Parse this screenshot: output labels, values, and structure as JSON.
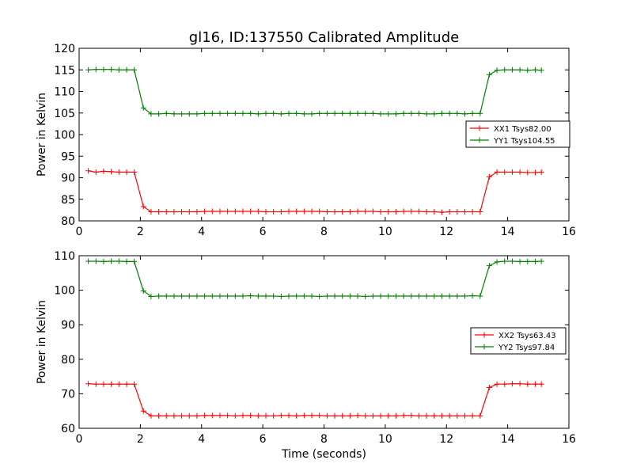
{
  "chart_data": [
    {
      "type": "line",
      "title": "gl16, ID:137550 Calibrated Amplitude",
      "xlabel": "",
      "ylabel": "Power in Kelvin",
      "xlim": [
        0,
        16
      ],
      "ylim": [
        80,
        120
      ],
      "xticks": [
        "0",
        "2",
        "4",
        "6",
        "8",
        "10",
        "12",
        "14",
        "16"
      ],
      "yticks": [
        "80",
        "85",
        "90",
        "95",
        "100",
        "105",
        "110",
        "115",
        "120"
      ],
      "grid": false,
      "legend_position": "center-right",
      "x": [
        0.3,
        0.55,
        0.8,
        1.05,
        1.3,
        1.55,
        1.8,
        2.1,
        2.35,
        2.6,
        2.85,
        3.1,
        3.35,
        3.6,
        3.85,
        4.1,
        4.35,
        4.6,
        4.85,
        5.1,
        5.35,
        5.6,
        5.85,
        6.1,
        6.35,
        6.6,
        6.85,
        7.1,
        7.35,
        7.6,
        7.85,
        8.1,
        8.35,
        8.6,
        8.85,
        9.1,
        9.35,
        9.6,
        9.85,
        10.1,
        10.35,
        10.6,
        10.85,
        11.1,
        11.35,
        11.6,
        11.85,
        12.1,
        12.35,
        12.6,
        12.85,
        13.1,
        13.4,
        13.65,
        13.9,
        14.15,
        14.4,
        14.65,
        14.9,
        15.1
      ],
      "series": [
        {
          "name": "XX1 Tsys82.00",
          "color": "#ff0000",
          "values": [
            91.6,
            91.3,
            91.5,
            91.4,
            91.3,
            91.3,
            91.3,
            83.3,
            82.1,
            82.1,
            82.1,
            82.1,
            82.1,
            82.1,
            82.1,
            82.2,
            82.2,
            82.2,
            82.2,
            82.2,
            82.2,
            82.2,
            82.2,
            82.1,
            82.1,
            82.1,
            82.2,
            82.2,
            82.2,
            82.2,
            82.2,
            82.1,
            82.1,
            82.1,
            82.1,
            82.2,
            82.2,
            82.2,
            82.1,
            82.1,
            82.1,
            82.2,
            82.2,
            82.2,
            82.1,
            82.1,
            82.0,
            82.1,
            82.1,
            82.1,
            82.1,
            82.1,
            90.2,
            91.3,
            91.3,
            91.3,
            91.3,
            91.2,
            91.2,
            91.3
          ]
        },
        {
          "name": "YY1 Tsys104.55",
          "color": "#008000",
          "values": [
            115.0,
            115.1,
            115.1,
            115.1,
            115.0,
            115.0,
            115.0,
            106.2,
            104.8,
            104.8,
            104.9,
            104.8,
            104.8,
            104.8,
            104.8,
            104.9,
            104.9,
            104.9,
            104.9,
            104.9,
            104.9,
            104.9,
            104.8,
            104.9,
            104.9,
            104.8,
            104.9,
            104.9,
            104.8,
            104.8,
            104.9,
            104.9,
            104.9,
            104.9,
            104.9,
            104.9,
            104.9,
            104.9,
            104.8,
            104.8,
            104.8,
            104.9,
            104.9,
            104.9,
            104.8,
            104.8,
            104.9,
            104.9,
            104.9,
            104.8,
            104.9,
            104.9,
            113.9,
            114.9,
            115.0,
            115.0,
            115.0,
            114.9,
            115.0,
            114.9
          ]
        }
      ]
    },
    {
      "type": "line",
      "title": "",
      "xlabel": "Time (seconds)",
      "ylabel": "Power in Kelvin",
      "xlim": [
        0,
        16
      ],
      "ylim": [
        60,
        110
      ],
      "xticks": [
        "0",
        "2",
        "4",
        "6",
        "8",
        "10",
        "12",
        "14",
        "16"
      ],
      "yticks": [
        "60",
        "70",
        "80",
        "90",
        "100",
        "110"
      ],
      "grid": false,
      "legend_position": "center-right",
      "x": [
        0.3,
        0.55,
        0.8,
        1.05,
        1.3,
        1.55,
        1.8,
        2.1,
        2.35,
        2.6,
        2.85,
        3.1,
        3.35,
        3.6,
        3.85,
        4.1,
        4.35,
        4.6,
        4.85,
        5.1,
        5.35,
        5.6,
        5.85,
        6.1,
        6.35,
        6.6,
        6.85,
        7.1,
        7.35,
        7.6,
        7.85,
        8.1,
        8.35,
        8.6,
        8.85,
        9.1,
        9.35,
        9.6,
        9.85,
        10.1,
        10.35,
        10.6,
        10.85,
        11.1,
        11.35,
        11.6,
        11.85,
        12.1,
        12.35,
        12.6,
        12.85,
        13.1,
        13.4,
        13.65,
        13.9,
        14.15,
        14.4,
        14.65,
        14.9,
        15.1
      ],
      "series": [
        {
          "name": "XX2 Tsys63.43",
          "color": "#ff0000",
          "values": [
            72.9,
            72.8,
            72.8,
            72.8,
            72.8,
            72.8,
            72.8,
            65.0,
            63.6,
            63.6,
            63.6,
            63.6,
            63.6,
            63.6,
            63.6,
            63.7,
            63.7,
            63.7,
            63.7,
            63.6,
            63.7,
            63.7,
            63.6,
            63.6,
            63.6,
            63.7,
            63.7,
            63.6,
            63.7,
            63.7,
            63.7,
            63.6,
            63.6,
            63.6,
            63.6,
            63.7,
            63.6,
            63.6,
            63.6,
            63.6,
            63.6,
            63.7,
            63.7,
            63.6,
            63.6,
            63.6,
            63.6,
            63.6,
            63.6,
            63.6,
            63.6,
            63.6,
            71.8,
            72.8,
            72.8,
            72.9,
            72.9,
            72.8,
            72.8,
            72.8
          ]
        },
        {
          "name": "YY2 Tsys97.84",
          "color": "#008000",
          "values": [
            108.4,
            108.4,
            108.3,
            108.4,
            108.4,
            108.3,
            108.3,
            99.8,
            98.2,
            98.3,
            98.3,
            98.3,
            98.3,
            98.3,
            98.3,
            98.3,
            98.3,
            98.3,
            98.3,
            98.3,
            98.3,
            98.4,
            98.3,
            98.3,
            98.3,
            98.2,
            98.3,
            98.3,
            98.3,
            98.3,
            98.2,
            98.3,
            98.3,
            98.3,
            98.3,
            98.3,
            98.2,
            98.3,
            98.3,
            98.3,
            98.3,
            98.3,
            98.3,
            98.3,
            98.3,
            98.3,
            98.3,
            98.3,
            98.3,
            98.3,
            98.4,
            98.3,
            107.1,
            108.2,
            108.4,
            108.4,
            108.3,
            108.3,
            108.3,
            108.4
          ]
        }
      ]
    }
  ]
}
